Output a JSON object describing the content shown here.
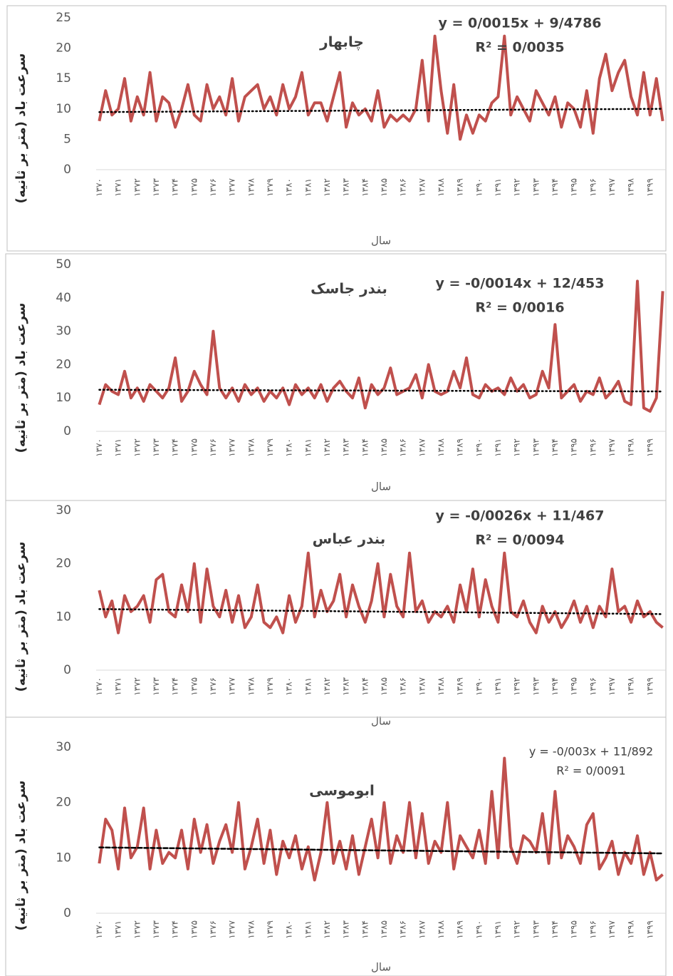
{
  "chart_data": [
    {
      "type": "line",
      "title": "چابهار",
      "y_label": "سرعت باد (متر بر ثانیه)",
      "x_label": "سال",
      "categories": [
        "۱۳۷۰",
        null,
        null,
        "۱۳۷۱",
        null,
        null,
        "۱۳۷۲",
        null,
        null,
        "۱۳۷۳",
        null,
        null,
        "۱۳۷۴",
        null,
        null,
        "۱۳۷۵",
        null,
        null,
        "۱۳۷۶",
        null,
        null,
        "۱۳۷۷",
        null,
        null,
        "۱۳۷۸",
        null,
        null,
        "۱۳۷۹",
        null,
        null,
        "۱۳۸۰",
        null,
        null,
        "۱۳۸۱",
        null,
        null,
        "۱۳۸۲",
        null,
        null,
        "۱۳۸۳",
        null,
        null,
        "۱۳۸۴",
        null,
        null,
        "۱۳۸۵",
        null,
        null,
        "۱۳۸۶",
        null,
        null,
        "۱۳۸۷",
        null,
        null,
        "۱۳۸۸",
        null,
        null,
        "۱۳۸۹",
        null,
        null,
        "۱۳۹۰",
        null,
        null,
        "۱۳۹۱",
        null,
        null,
        "۱۳۹۲",
        null,
        null,
        "۱۳۹۳",
        null,
        null,
        "۱۳۹۴",
        null,
        null,
        "۱۳۹۵",
        null,
        null,
        "۱۳۹۶",
        null,
        null,
        "۱۳۹۷",
        null,
        null,
        "۱۳۹۸",
        null,
        null,
        "۱۳۹۹",
        null,
        null
      ],
      "values": [
        8,
        13,
        9,
        10,
        15,
        8,
        12,
        9,
        16,
        8,
        12,
        11,
        7,
        10,
        14,
        9,
        8,
        14,
        10,
        12,
        9,
        15,
        8,
        12,
        13,
        14,
        10,
        12,
        9,
        14,
        10,
        12,
        16,
        9,
        11,
        11,
        8,
        12,
        16,
        7,
        11,
        9,
        10,
        8,
        13,
        7,
        9,
        8,
        9,
        8,
        10,
        18,
        8,
        22,
        13,
        6,
        14,
        5,
        9,
        6,
        9,
        8,
        11,
        12,
        22,
        9,
        12,
        10,
        8,
        13,
        11,
        9,
        12,
        7,
        11,
        10,
        7,
        13,
        6,
        15,
        19,
        13,
        16,
        18,
        12,
        9,
        16,
        9,
        15,
        8
      ],
      "color": "#c0504d",
      "ylim": [
        0,
        25
      ],
      "yticks": [
        0,
        5,
        10,
        15,
        20,
        25
      ],
      "trendline": {
        "slope": 0.0015,
        "intercept": 9.4786,
        "label": "y = 0/0015x + 9/4786",
        "r2": 0.0035,
        "r2_label": "R² = 0/0035",
        "style": "dotted"
      }
    },
    {
      "type": "line",
      "title": "بندر جاسک",
      "y_label": "سرعت باد (متر بر ثانیه)",
      "x_label": "سال",
      "categories": [
        "۱۳۷۰",
        null,
        null,
        "۱۳۷۱",
        null,
        null,
        "۱۳۷۲",
        null,
        null,
        "۱۳۷۳",
        null,
        null,
        "۱۳۷۴",
        null,
        null,
        "۱۳۷۵",
        null,
        null,
        "۱۳۷۶",
        null,
        null,
        "۱۳۷۷",
        null,
        null,
        "۱۳۷۸",
        null,
        null,
        "۱۳۷۹",
        null,
        null,
        "۱۳۸۰",
        null,
        null,
        "۱۳۸۱",
        null,
        null,
        "۱۳۸۲",
        null,
        null,
        "۱۳۸۳",
        null,
        null,
        "۱۳۸۴",
        null,
        null,
        "۱۳۸۵",
        null,
        null,
        "۱۳۸۶",
        null,
        null,
        "۱۳۸۷",
        null,
        null,
        "۱۳۸۸",
        null,
        null,
        "۱۳۸۹",
        null,
        null,
        "۱۳۹۰",
        null,
        null,
        "۱۳۹۱",
        null,
        null,
        "۱۳۹۲",
        null,
        null,
        "۱۳۹۳",
        null,
        null,
        "۱۳۹۴",
        null,
        null,
        "۱۳۹۵",
        null,
        null,
        "۱۳۹۶",
        null,
        null,
        "۱۳۹۷",
        null,
        null,
        "۱۳۹۸",
        null,
        null,
        "۱۳۹۹",
        null,
        null
      ],
      "values": [
        8,
        14,
        12,
        11,
        18,
        10,
        13,
        9,
        14,
        12,
        10,
        13,
        22,
        9,
        12,
        18,
        14,
        11,
        30,
        13,
        10,
        13,
        9,
        14,
        11,
        13,
        9,
        12,
        10,
        13,
        8,
        14,
        11,
        13,
        10,
        14,
        9,
        13,
        15,
        12,
        10,
        16,
        7,
        14,
        11,
        13,
        19,
        11,
        12,
        13,
        17,
        10,
        20,
        12,
        11,
        12,
        18,
        13,
        22,
        11,
        10,
        14,
        12,
        13,
        11,
        16,
        12,
        14,
        10,
        11,
        18,
        13,
        32,
        10,
        12,
        14,
        9,
        12,
        11,
        16,
        10,
        12,
        15,
        9,
        8,
        45,
        7,
        6,
        10,
        42
      ],
      "color": "#c0504d",
      "ylim": [
        0,
        50
      ],
      "yticks": [
        0,
        10,
        20,
        30,
        40,
        50
      ],
      "trendline": {
        "slope": -0.0014,
        "intercept": 12.453,
        "label": "y = -0/0014x + 12/453",
        "r2": 0.0016,
        "r2_label": "R² = 0/0016",
        "style": "dotted"
      }
    },
    {
      "type": "line",
      "title": "بندر عباس",
      "y_label": "سرعت باد (متر بر ثانیه)",
      "x_label": "سال",
      "categories": [
        "۱۳۷۰",
        null,
        null,
        "۱۳۷۱",
        null,
        null,
        "۱۳۷۲",
        null,
        null,
        "۱۳۷۳",
        null,
        null,
        "۱۳۷۴",
        null,
        null,
        "۱۳۷۵",
        null,
        null,
        "۱۳۷۶",
        null,
        null,
        "۱۳۷۷",
        null,
        null,
        "۱۳۷۸",
        null,
        null,
        "۱۳۷۹",
        null,
        null,
        "۱۳۸۰",
        null,
        null,
        "۱۳۸۱",
        null,
        null,
        "۱۳۸۲",
        null,
        null,
        "۱۳۸۳",
        null,
        null,
        "۱۳۸۴",
        null,
        null,
        "۱۳۸۵",
        null,
        null,
        "۱۳۸۶",
        null,
        null,
        "۱۳۸۷",
        null,
        null,
        "۱۳۸۸",
        null,
        null,
        "۱۳۸۹",
        null,
        null,
        "۱۳۹۰",
        null,
        null,
        "۱۳۹۱",
        null,
        null,
        "۱۳۹۲",
        null,
        null,
        "۱۳۹۳",
        null,
        null,
        "۱۳۹۴",
        null,
        null,
        "۱۳۹۵",
        null,
        null,
        "۱۳۹۶",
        null,
        null,
        "۱۳۹۷",
        null,
        null,
        "۱۳۹۸",
        null,
        null,
        "۱۳۹۹",
        null,
        null
      ],
      "values": [
        15,
        10,
        13,
        7,
        14,
        11,
        12,
        14,
        9,
        17,
        18,
        11,
        10,
        16,
        11,
        20,
        9,
        19,
        12,
        10,
        15,
        9,
        14,
        8,
        10,
        16,
        9,
        8,
        10,
        7,
        14,
        9,
        12,
        22,
        10,
        15,
        11,
        13,
        18,
        10,
        16,
        12,
        9,
        13,
        20,
        10,
        18,
        12,
        10,
        22,
        11,
        13,
        9,
        11,
        10,
        12,
        9,
        16,
        11,
        19,
        10,
        17,
        12,
        9,
        22,
        11,
        10,
        13,
        9,
        7,
        12,
        9,
        11,
        8,
        10,
        13,
        9,
        12,
        8,
        12,
        10,
        19,
        11,
        12,
        9,
        13,
        10,
        11,
        9,
        8
      ],
      "color": "#c0504d",
      "ylim": [
        0,
        30
      ],
      "yticks": [
        0,
        10,
        20,
        30
      ],
      "trendline": {
        "slope": -0.0026,
        "intercept": 11.467,
        "label": "y = -0/0026x + 11/467",
        "r2": 0.0094,
        "r2_label": "R² = 0/0094",
        "style": "dotted"
      }
    },
    {
      "type": "line",
      "title": "ابوموسی",
      "y_label": "سرعت باد (متر بر ثانیه)",
      "x_label": "سال",
      "categories": [
        "۱۳۷۰",
        null,
        null,
        "۱۳۷۱",
        null,
        null,
        "۱۳۷۲",
        null,
        null,
        "۱۳۷۳",
        null,
        null,
        "۱۳۷۴",
        null,
        null,
        "۱۳۷۵",
        null,
        null,
        "۱۳۷۶",
        null,
        null,
        "۱۳۷۷",
        null,
        null,
        "۱۳۷۸",
        null,
        null,
        "۱۳۷۹",
        null,
        null,
        "۱۳۸۰",
        null,
        null,
        "۱۳۸۱",
        null,
        null,
        "۱۳۸۲",
        null,
        null,
        "۱۳۸۳",
        null,
        null,
        "۱۳۸۴",
        null,
        null,
        "۱۳۸۵",
        null,
        null,
        "۱۳۸۶",
        null,
        null,
        "۱۳۸۷",
        null,
        null,
        "۱۳۸۸",
        null,
        null,
        "۱۳۸۹",
        null,
        null,
        "۱۳۹۰",
        null,
        null,
        "۱۳۹۱",
        null,
        null,
        "۱۳۹۲",
        null,
        null,
        "۱۳۹۳",
        null,
        null,
        "۱۳۹۴",
        null,
        null,
        "۱۳۹۵",
        null,
        null,
        "۱۳۹۶",
        null,
        null,
        "۱۳۹۷",
        null,
        null,
        "۱۳۹۸",
        null,
        null,
        "۱۳۹۹",
        null,
        null
      ],
      "values": [
        9,
        17,
        15,
        8,
        19,
        10,
        12,
        19,
        8,
        15,
        9,
        11,
        10,
        15,
        8,
        17,
        11,
        16,
        9,
        13,
        16,
        11,
        20,
        8,
        12,
        17,
        9,
        15,
        7,
        13,
        10,
        14,
        8,
        12,
        6,
        11,
        20,
        9,
        13,
        8,
        14,
        7,
        12,
        17,
        10,
        20,
        9,
        14,
        11,
        20,
        10,
        18,
        9,
        13,
        11,
        20,
        8,
        14,
        12,
        10,
        15,
        9,
        22,
        10,
        28,
        12,
        9,
        14,
        13,
        11,
        18,
        9,
        22,
        10,
        14,
        12,
        9,
        16,
        18,
        8,
        10,
        13,
        7,
        11,
        9,
        14,
        7,
        11,
        6,
        7
      ],
      "color": "#c0504d",
      "ylim": [
        0,
        30
      ],
      "yticks": [
        0,
        10,
        20,
        30
      ],
      "trendline": {
        "slope": -0.003,
        "intercept": 11.892,
        "label": "y = -0/003x + 11/892",
        "r2": 0.0091,
        "r2_label": "R² = 0/0091",
        "style": "dashed"
      }
    }
  ]
}
